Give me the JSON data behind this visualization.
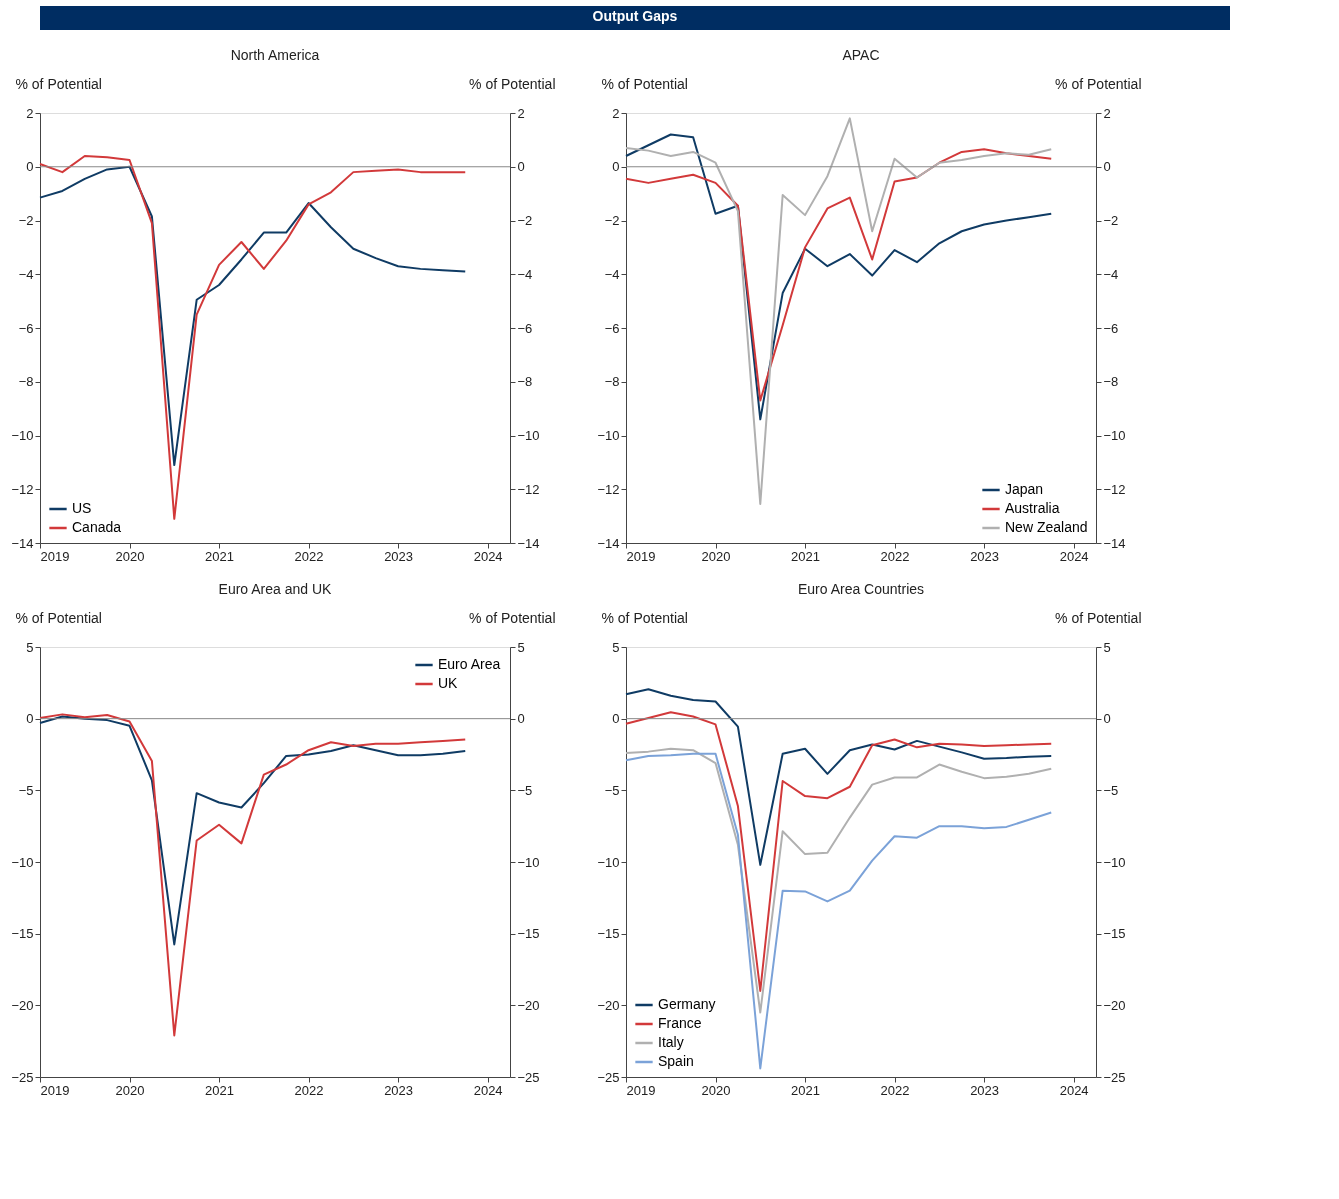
{
  "chart_data": [
    {
      "type": "other",
      "title": "Output Gaps",
      "color": "#002d62"
    },
    {
      "type": "line",
      "title": "North America",
      "ylabel": "% of Potential",
      "y2label": "% of Potential",
      "x": [
        2019,
        2019.25,
        2019.5,
        2019.75,
        2020,
        2020.25,
        2020.5,
        2020.75,
        2021,
        2021.25,
        2021.5,
        2021.75,
        2022,
        2022.25,
        2022.5,
        2022.75,
        2023,
        2023.25,
        2023.5,
        2023.75
      ],
      "xlim": [
        2019,
        2024.25
      ],
      "xticks": [
        2019,
        2020,
        2021,
        2022,
        2023,
        2024
      ],
      "ylim": [
        -14,
        2
      ],
      "yticks": [
        -14,
        -12,
        -10,
        -8,
        -6,
        -4,
        -2,
        0,
        2
      ],
      "y2lim": [
        -14,
        2
      ],
      "y2ticks": [
        -14,
        -12,
        -10,
        -8,
        -6,
        -4,
        -2,
        0,
        2
      ],
      "grid": false,
      "legend": "bottom left",
      "marker": "none",
      "line_style": "solid",
      "ref_lines": [
        {
          "axis": "y",
          "value": 0,
          "color": "#888888"
        }
      ],
      "series": [
        {
          "name": "US",
          "color": "#0f3b64",
          "values": [
            -1.15,
            -0.9,
            -0.45,
            -0.1,
            0.0,
            -1.85,
            -11.1,
            -4.95,
            -4.4,
            -3.45,
            -2.45,
            -2.45,
            -1.35,
            -2.25,
            -3.05,
            -3.4,
            -3.7,
            -3.8,
            -3.85,
            -3.9
          ]
        },
        {
          "name": "Canada",
          "color": "#d2393a",
          "values": [
            0.1,
            -0.2,
            0.4,
            0.35,
            0.25,
            -2.1,
            -13.1,
            -5.5,
            -3.65,
            -2.8,
            -3.8,
            -2.75,
            -1.4,
            -0.95,
            -0.2,
            -0.15,
            -0.1,
            -0.2,
            -0.2,
            -0.2
          ]
        }
      ]
    },
    {
      "type": "line",
      "title": "APAC",
      "ylabel": "% of Potential",
      "y2label": "% of Potential",
      "x": [
        2019,
        2019.25,
        2019.5,
        2019.75,
        2020,
        2020.25,
        2020.5,
        2020.75,
        2021,
        2021.25,
        2021.5,
        2021.75,
        2022,
        2022.25,
        2022.5,
        2022.75,
        2023,
        2023.25,
        2023.5,
        2023.75
      ],
      "xlim": [
        2019,
        2024.25
      ],
      "xticks": [
        2019,
        2020,
        2021,
        2022,
        2023,
        2024
      ],
      "ylim": [
        -14,
        2
      ],
      "yticks": [
        -14,
        -12,
        -10,
        -8,
        -6,
        -4,
        -2,
        0,
        2
      ],
      "y2lim": [
        -14,
        2
      ],
      "y2ticks": [
        -14,
        -12,
        -10,
        -8,
        -6,
        -4,
        -2,
        0,
        2
      ],
      "grid": false,
      "legend": "bottom right",
      "marker": "none",
      "line_style": "solid",
      "ref_lines": [
        {
          "axis": "y",
          "value": 0,
          "color": "#888888"
        }
      ],
      "series": [
        {
          "name": "Japan",
          "color": "#0f3b64",
          "values": [
            0.4,
            0.8,
            1.2,
            1.1,
            -1.75,
            -1.45,
            -9.4,
            -4.7,
            -3.05,
            -3.7,
            -3.25,
            -4.05,
            -3.1,
            -3.55,
            -2.85,
            -2.4,
            -2.15,
            -2.0,
            -1.88,
            -1.75
          ]
        },
        {
          "name": "Australia",
          "color": "#d2393a",
          "values": [
            -0.45,
            -0.6,
            -0.45,
            -0.3,
            -0.6,
            -1.45,
            -8.7,
            -5.9,
            -3.0,
            -1.55,
            -1.15,
            -3.45,
            -0.55,
            -0.4,
            0.15,
            0.55,
            0.65,
            0.5,
            0.4,
            0.3
          ]
        },
        {
          "name": "New Zealand",
          "color": "#b0b0b0",
          "values": [
            0.7,
            0.6,
            0.4,
            0.55,
            0.15,
            -1.65,
            -12.55,
            -1.05,
            -1.8,
            -0.35,
            1.8,
            -2.4,
            0.3,
            -0.4,
            0.15,
            0.25,
            0.4,
            0.5,
            0.45,
            0.65
          ]
        }
      ]
    },
    {
      "type": "line",
      "title": "Euro Area and UK",
      "ylabel": "% of Potential",
      "y2label": "% of Potential",
      "x": [
        2019,
        2019.25,
        2019.5,
        2019.75,
        2020,
        2020.25,
        2020.5,
        2020.75,
        2021,
        2021.25,
        2021.5,
        2021.75,
        2022,
        2022.25,
        2022.5,
        2022.75,
        2023,
        2023.25,
        2023.5,
        2023.75
      ],
      "xlim": [
        2019,
        2024.25
      ],
      "xticks": [
        2019,
        2020,
        2021,
        2022,
        2023,
        2024
      ],
      "ylim": [
        -25,
        5
      ],
      "yticks": [
        -25,
        -20,
        -15,
        -10,
        -5,
        0,
        5
      ],
      "y2lim": [
        -25,
        5
      ],
      "y2ticks": [
        -25,
        -20,
        -15,
        -10,
        -5,
        0,
        5
      ],
      "grid": false,
      "legend": "top right",
      "marker": "none",
      "line_style": "solid",
      "ref_lines": [
        {
          "axis": "y",
          "value": 0,
          "color": "#888888"
        }
      ],
      "series": [
        {
          "name": "Euro Area",
          "color": "#0f3b64",
          "values": [
            -0.3,
            0.15,
            0.0,
            -0.1,
            -0.5,
            -4.3,
            -15.75,
            -5.2,
            -5.85,
            -6.2,
            -4.5,
            -2.6,
            -2.5,
            -2.25,
            -1.85,
            -2.2,
            -2.55,
            -2.55,
            -2.45,
            -2.25
          ]
        },
        {
          "name": "UK",
          "color": "#d2393a",
          "values": [
            0.05,
            0.3,
            0.1,
            0.25,
            -0.2,
            -2.95,
            -22.1,
            -8.5,
            -7.4,
            -8.7,
            -3.9,
            -3.2,
            -2.2,
            -1.65,
            -1.9,
            -1.75,
            -1.75,
            -1.65,
            -1.55,
            -1.45
          ]
        }
      ]
    },
    {
      "type": "line",
      "title": "Euro Area Countries",
      "ylabel": "% of Potential",
      "y2label": "% of Potential",
      "x": [
        2019,
        2019.25,
        2019.5,
        2019.75,
        2020,
        2020.25,
        2020.5,
        2020.75,
        2021,
        2021.25,
        2021.5,
        2021.75,
        2022,
        2022.25,
        2022.5,
        2022.75,
        2023,
        2023.25,
        2023.5,
        2023.75
      ],
      "xlim": [
        2019,
        2024.25
      ],
      "xticks": [
        2019,
        2020,
        2021,
        2022,
        2023,
        2024
      ],
      "ylim": [
        -25,
        5
      ],
      "yticks": [
        -25,
        -20,
        -15,
        -10,
        -5,
        0,
        5
      ],
      "y2lim": [
        -25,
        5
      ],
      "y2ticks": [
        -25,
        -20,
        -15,
        -10,
        -5,
        0,
        5
      ],
      "grid": false,
      "legend": "bottom left",
      "marker": "none",
      "line_style": "solid",
      "ref_lines": [
        {
          "axis": "y",
          "value": 0,
          "color": "#888888"
        }
      ],
      "series": [
        {
          "name": "Germany",
          "color": "#0f3b64",
          "values": [
            1.7,
            2.05,
            1.6,
            1.3,
            1.2,
            -0.55,
            -10.2,
            -2.45,
            -2.1,
            -3.85,
            -2.2,
            -1.8,
            -2.15,
            -1.55,
            -1.95,
            -2.35,
            -2.8,
            -2.75,
            -2.65,
            -2.6
          ]
        },
        {
          "name": "France",
          "color": "#d2393a",
          "values": [
            -0.35,
            0.05,
            0.45,
            0.15,
            -0.4,
            -6.1,
            -19.0,
            -4.35,
            -5.4,
            -5.55,
            -4.75,
            -1.85,
            -1.45,
            -2.0,
            -1.75,
            -1.8,
            -1.9,
            -1.85,
            -1.8,
            -1.75
          ]
        },
        {
          "name": "Italy",
          "color": "#b0b0b0",
          "values": [
            -2.4,
            -2.3,
            -2.1,
            -2.2,
            -3.1,
            -8.8,
            -20.5,
            -7.85,
            -9.45,
            -9.35,
            -6.9,
            -4.6,
            -4.1,
            -4.1,
            -3.2,
            -3.7,
            -4.15,
            -4.05,
            -3.85,
            -3.5
          ]
        },
        {
          "name": "Spain",
          "color": "#7ba2d8",
          "values": [
            -2.9,
            -2.6,
            -2.55,
            -2.45,
            -2.45,
            -8.1,
            -24.4,
            -12.0,
            -12.05,
            -12.75,
            -12.0,
            -9.9,
            -8.2,
            -8.3,
            -7.5,
            -7.5,
            -7.65,
            -7.55,
            -7.05,
            -6.55
          ]
        }
      ]
    }
  ]
}
